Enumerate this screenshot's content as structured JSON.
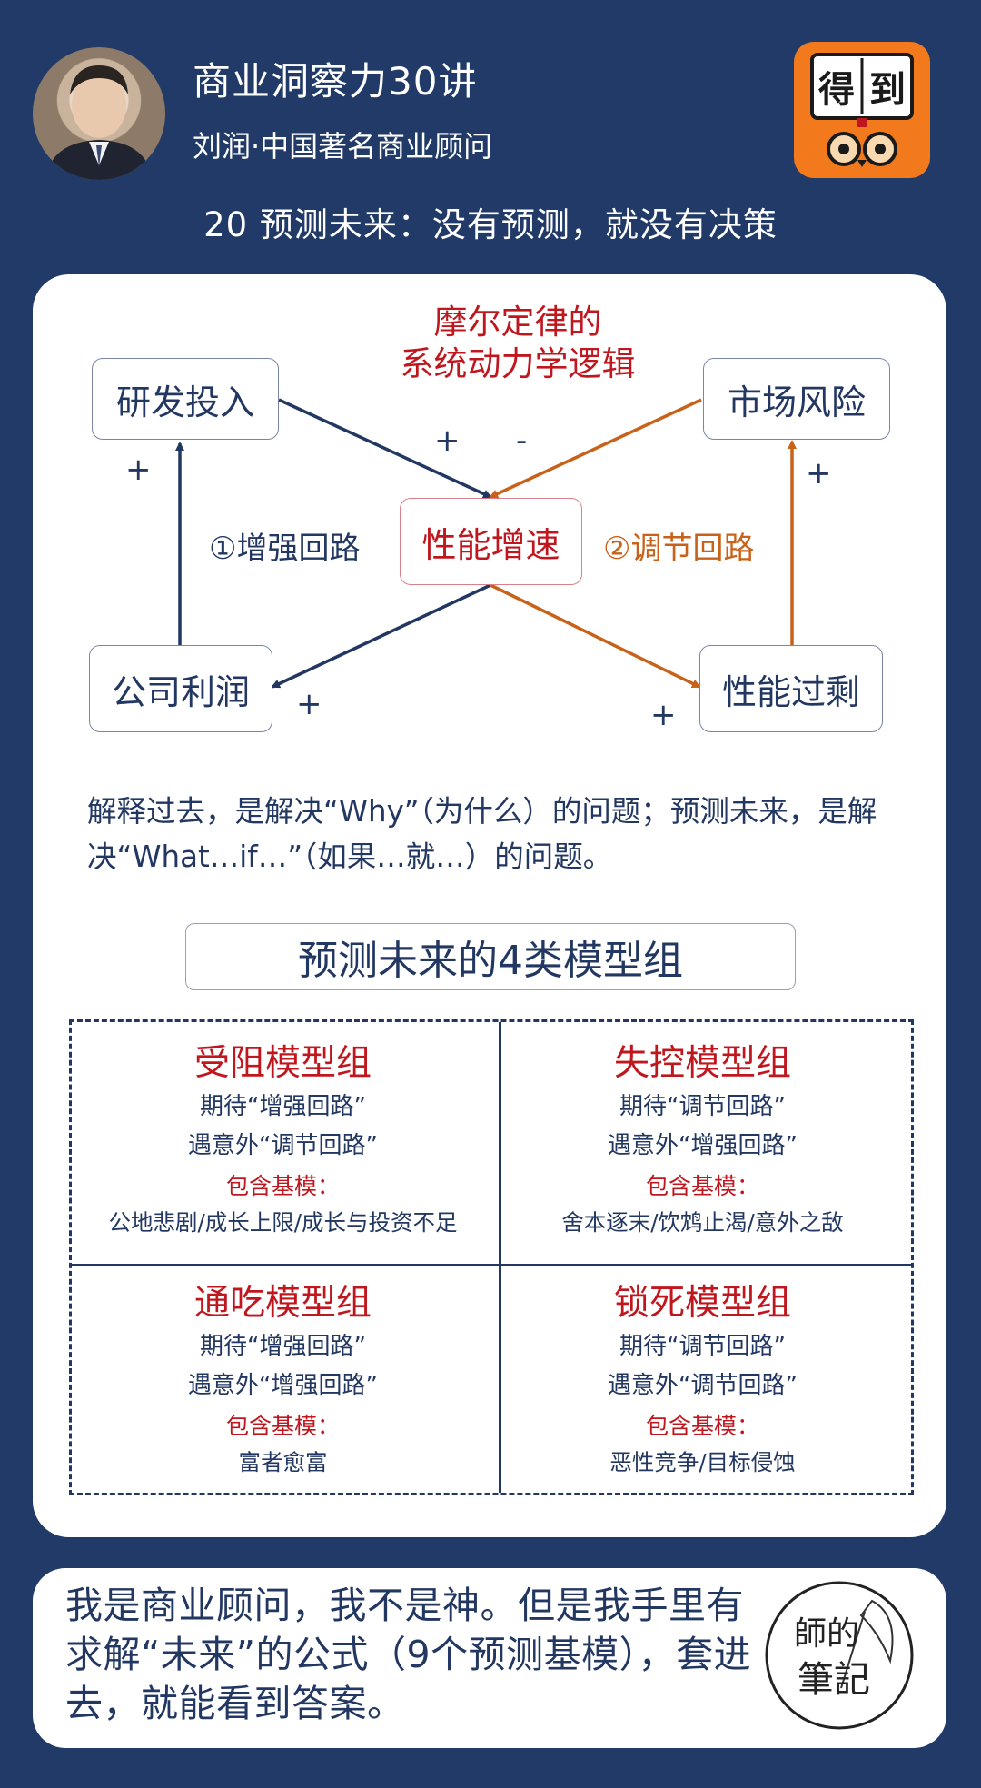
{
  "header": {
    "course_title": "商业洞察力30讲",
    "author": "刘润·中国著名商业顾问",
    "logo_text": "得到",
    "lesson_title": "20  预测未来：没有预测，就没有决策"
  },
  "diagram": {
    "title_line1": "摩尔定律的",
    "title_line2": "系统动力学逻辑",
    "nodes": {
      "rd": "研发投入",
      "market": "市场风险",
      "center": "性能增速",
      "profit": "公司利润",
      "surplus": "性能过剩"
    },
    "loop1": "①增强回路",
    "loop2": "②调节回路",
    "signs": {
      "rd_left": "+",
      "rd_to_center": "+",
      "market_to_center": "-",
      "market_right": "+",
      "profit": "+",
      "surplus": "+"
    },
    "colors": {
      "reinforcing": "#223761",
      "balancing": "#c8621a",
      "accent_red": "#c0171f"
    }
  },
  "explanation": "解释过去，是解决“Why”（为什么）的问题；预测未来，是解决“What…if…”（如果…就…）的问题。",
  "groups": {
    "title": "预测未来的4类模型组",
    "cells": [
      {
        "name": "受阻模型组",
        "expect": "期待“增强回路”",
        "unexpected": "遇意外“调节回路”",
        "basic_label": "包含基模：",
        "basics": "公地悲剧/成长上限/成长与投资不足"
      },
      {
        "name": "失控模型组",
        "expect": "期待“调节回路”",
        "unexpected": "遇意外“增强回路”",
        "basic_label": "包含基模：",
        "basics": "舍本逐末/饮鸩止渴/意外之敌"
      },
      {
        "name": "通吃模型组",
        "expect": "期待“增强回路”",
        "unexpected": "遇意外“增强回路”",
        "basic_label": "包含基模：",
        "basics": "富者愈富"
      },
      {
        "name": "锁死模型组",
        "expect": "期待“调节回路”",
        "unexpected": "遇意外“调节回路”",
        "basic_label": "包含基模：",
        "basics": "恶性竞争/目标侵蚀"
      }
    ]
  },
  "footer": {
    "quote": "我是商业顾问，我不是神。但是我手里有求解“未来”的公式（9个预测基模），套进去，就能看到答案。",
    "stamp_line1": "師的",
    "stamp_line2": "筆記"
  }
}
